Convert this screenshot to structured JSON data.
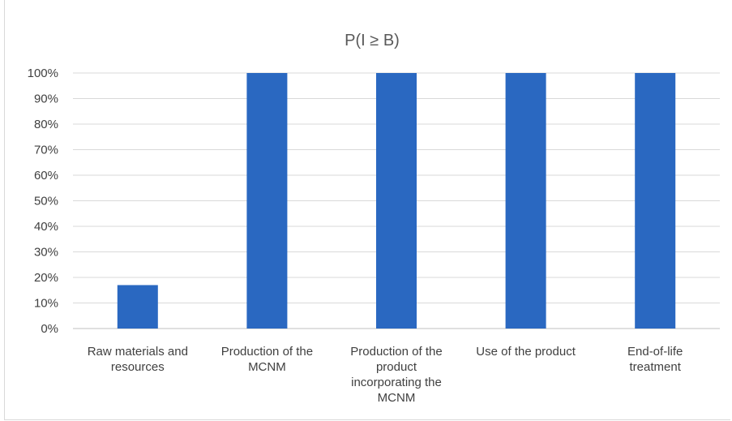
{
  "chart_data": {
    "type": "bar",
    "title": "P(I ≥ B)",
    "categories": [
      [
        "Raw materials and",
        "resources"
      ],
      [
        "Production of the",
        "MCNM"
      ],
      [
        "Production of the",
        "product",
        "incorporating the",
        "MCNM"
      ],
      [
        "Use of the product"
      ],
      [
        "End-of-life",
        "treatment"
      ]
    ],
    "values": [
      17,
      100,
      100,
      100,
      100
    ],
    "ylim": [
      0,
      100
    ],
    "yticks": [
      "0%",
      "10%",
      "20%",
      "30%",
      "40%",
      "50%",
      "60%",
      "70%",
      "80%",
      "90%",
      "100%"
    ],
    "grid": true,
    "bar_color": "#2a68c1"
  }
}
